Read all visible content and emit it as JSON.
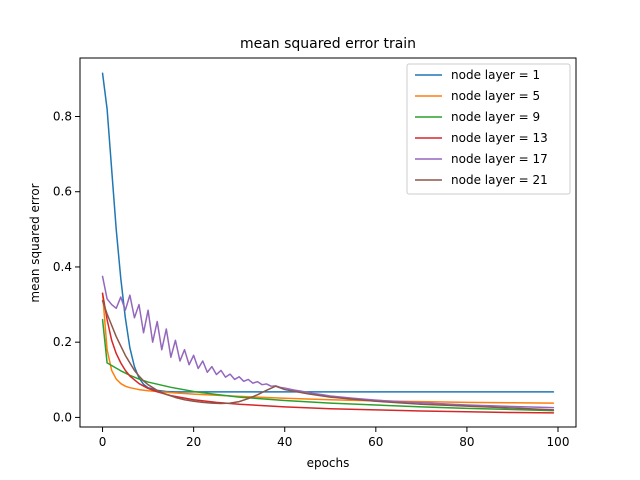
{
  "chart_data": {
    "type": "line",
    "title": "mean squared error train",
    "xlabel": "epochs",
    "ylabel": "mean squared error",
    "xlim": [
      -4.95,
      103.95
    ],
    "ylim": [
      -0.0255,
      0.9555
    ],
    "x_ticks": [
      0,
      20,
      40,
      60,
      80,
      100
    ],
    "y_ticks": [
      0.0,
      0.2,
      0.4,
      0.6,
      0.8
    ],
    "x_tick_labels": [
      "0",
      "20",
      "40",
      "60",
      "80",
      "100"
    ],
    "y_tick_labels": [
      "0.0",
      "0.2",
      "0.4",
      "0.6",
      "0.8"
    ],
    "grid": false,
    "legend_position": "top-right",
    "series": [
      {
        "name": "node layer = 1",
        "color": "#1f77b4",
        "x": [
          0,
          1,
          2,
          3,
          4,
          5,
          6,
          7,
          8,
          9,
          10,
          12,
          14,
          16,
          18,
          20,
          25,
          30,
          40,
          50,
          60,
          70,
          80,
          90,
          99
        ],
        "y": [
          0.915,
          0.82,
          0.66,
          0.5,
          0.37,
          0.265,
          0.185,
          0.135,
          0.105,
          0.088,
          0.079,
          0.072,
          0.069,
          0.068,
          0.068,
          0.068,
          0.068,
          0.068,
          0.068,
          0.068,
          0.068,
          0.068,
          0.068,
          0.068,
          0.068
        ]
      },
      {
        "name": "node layer = 5",
        "color": "#ff7f0e",
        "x": [
          0,
          1,
          2,
          3,
          4,
          5,
          6,
          8,
          10,
          15,
          20,
          30,
          40,
          50,
          60,
          70,
          80,
          90,
          99
        ],
        "y": [
          0.33,
          0.18,
          0.125,
          0.102,
          0.09,
          0.083,
          0.079,
          0.074,
          0.071,
          0.066,
          0.062,
          0.056,
          0.051,
          0.047,
          0.044,
          0.042,
          0.04,
          0.039,
          0.038
        ]
      },
      {
        "name": "node layer = 9",
        "color": "#2ca02c",
        "x": [
          0,
          1,
          2,
          3,
          4,
          6,
          8,
          10,
          15,
          20,
          25,
          30,
          40,
          50,
          60,
          70,
          80,
          90,
          99
        ],
        "y": [
          0.26,
          0.145,
          0.138,
          0.131,
          0.124,
          0.112,
          0.102,
          0.094,
          0.08,
          0.069,
          0.061,
          0.054,
          0.045,
          0.038,
          0.033,
          0.028,
          0.024,
          0.021,
          0.018
        ]
      },
      {
        "name": "node layer = 13",
        "color": "#d62728",
        "x": [
          0,
          1,
          2,
          3,
          4,
          5,
          6,
          8,
          10,
          12,
          15,
          20,
          25,
          30,
          40,
          50,
          60,
          70,
          80,
          90,
          99
        ],
        "y": [
          0.33,
          0.26,
          0.205,
          0.17,
          0.145,
          0.125,
          0.11,
          0.09,
          0.077,
          0.068,
          0.058,
          0.047,
          0.04,
          0.035,
          0.028,
          0.023,
          0.02,
          0.017,
          0.015,
          0.013,
          0.012
        ]
      },
      {
        "name": "node layer = 17",
        "color": "#9467bd",
        "x": [
          0,
          1,
          2,
          3,
          4,
          5,
          6,
          7,
          8,
          9,
          10,
          11,
          12,
          13,
          14,
          15,
          16,
          17,
          18,
          19,
          20,
          21,
          22,
          23,
          24,
          25,
          26,
          27,
          28,
          29,
          30,
          31,
          32,
          33,
          34,
          35,
          36,
          37,
          38,
          39,
          40,
          42,
          44,
          46,
          48,
          50,
          55,
          60,
          65,
          70,
          80,
          90,
          99
        ],
        "y": [
          0.375,
          0.315,
          0.3,
          0.29,
          0.32,
          0.285,
          0.325,
          0.265,
          0.3,
          0.225,
          0.285,
          0.2,
          0.255,
          0.18,
          0.235,
          0.16,
          0.205,
          0.15,
          0.18,
          0.14,
          0.165,
          0.13,
          0.15,
          0.12,
          0.135,
          0.114,
          0.125,
          0.107,
          0.115,
          0.101,
          0.108,
          0.096,
          0.101,
          0.091,
          0.095,
          0.087,
          0.089,
          0.083,
          0.084,
          0.08,
          0.078,
          0.073,
          0.069,
          0.064,
          0.061,
          0.057,
          0.051,
          0.046,
          0.042,
          0.039,
          0.033,
          0.029,
          0.026
        ]
      },
      {
        "name": "node layer = 21",
        "color": "#8c564b",
        "x": [
          0,
          1,
          2,
          3,
          4,
          5,
          6,
          7,
          8,
          9,
          10,
          12,
          14,
          16,
          18,
          20,
          22,
          24,
          26,
          28,
          30,
          32,
          34,
          36,
          38,
          40,
          45,
          50,
          60,
          70,
          80,
          90,
          99
        ],
        "y": [
          0.31,
          0.275,
          0.245,
          0.215,
          0.19,
          0.165,
          0.145,
          0.125,
          0.11,
          0.097,
          0.087,
          0.072,
          0.061,
          0.053,
          0.047,
          0.043,
          0.04,
          0.038,
          0.037,
          0.038,
          0.042,
          0.05,
          0.06,
          0.072,
          0.083,
          0.074,
          0.063,
          0.054,
          0.043,
          0.035,
          0.03,
          0.025,
          0.02
        ]
      }
    ]
  }
}
